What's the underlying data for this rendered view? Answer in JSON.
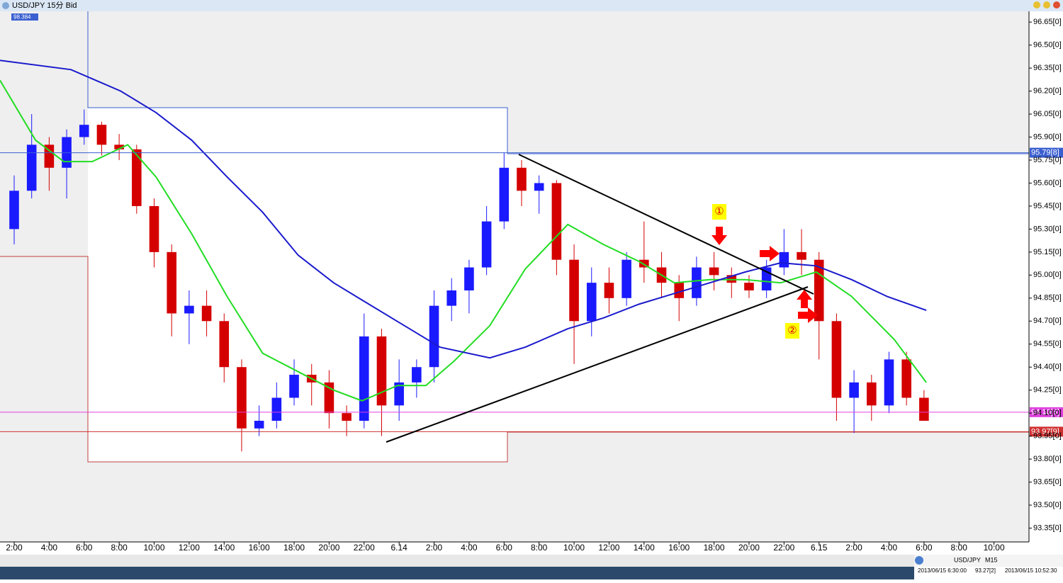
{
  "chart_data": {
    "type": "candlestick",
    "title": "USD/JPY 15分 Bid",
    "badge": "98.384",
    "xlim": [
      -0.81,
      58.0
    ],
    "ylim": [
      93.26,
      96.72
    ],
    "xticks": [
      {
        "value": 0,
        "label": "2:00"
      },
      {
        "value": 2,
        "label": "4:00"
      },
      {
        "value": 4,
        "label": "6:00"
      },
      {
        "value": 6,
        "label": "8:00"
      },
      {
        "value": 8,
        "label": "10:00"
      },
      {
        "value": 10,
        "label": "12:00"
      },
      {
        "value": 12,
        "label": "14:00"
      },
      {
        "value": 14,
        "label": "16:00"
      },
      {
        "value": 16,
        "label": "18:00"
      },
      {
        "value": 18,
        "label": "20:00"
      },
      {
        "value": 20,
        "label": "22:00"
      },
      {
        "value": 22,
        "label": "6.14"
      },
      {
        "value": 24,
        "label": "2:00"
      },
      {
        "value": 26,
        "label": "4:00"
      },
      {
        "value": 28,
        "label": "6:00"
      },
      {
        "value": 30,
        "label": "8:00"
      },
      {
        "value": 32,
        "label": "10:00"
      },
      {
        "value": 34,
        "label": "12:00"
      },
      {
        "value": 36,
        "label": "14:00"
      },
      {
        "value": 38,
        "label": "16:00"
      },
      {
        "value": 40,
        "label": "18:00"
      },
      {
        "value": 42,
        "label": "20:00"
      },
      {
        "value": 44,
        "label": "22:00"
      },
      {
        "value": 46,
        "label": "6.15"
      },
      {
        "value": 48,
        "label": "2:00"
      },
      {
        "value": 50,
        "label": "4:00"
      },
      {
        "value": 52,
        "label": "6:00"
      },
      {
        "value": 54,
        "label": "8:00"
      },
      {
        "value": 56,
        "label": "10:00"
      }
    ],
    "yticks": [
      {
        "value": 96.65,
        "label": "96.65[0]"
      },
      {
        "value": 96.5,
        "label": "96.50[0]"
      },
      {
        "value": 96.35,
        "label": "96.35[0]"
      },
      {
        "value": 96.2,
        "label": "96.20[0]"
      },
      {
        "value": 96.05,
        "label": "96.05[0]"
      },
      {
        "value": 95.9,
        "label": "95.90[0]"
      },
      {
        "value": 95.75,
        "label": "95.75[0]"
      },
      {
        "value": 95.6,
        "label": "95.60[0]"
      },
      {
        "value": 95.45,
        "label": "95.45[0]"
      },
      {
        "value": 95.3,
        "label": "95.30[0]"
      },
      {
        "value": 95.15,
        "label": "95.15[0]"
      },
      {
        "value": 95.0,
        "label": "95.00[0]"
      },
      {
        "value": 94.85,
        "label": "94.85[0]"
      },
      {
        "value": 94.7,
        "label": "94.70[0]"
      },
      {
        "value": 94.55,
        "label": "94.55[0]"
      },
      {
        "value": 94.4,
        "label": "94.40[0]"
      },
      {
        "value": 94.25,
        "label": "94.25[0]"
      },
      {
        "value": 94.1,
        "label": "94.10[0]"
      },
      {
        "value": 93.95,
        "label": "93.95[0]"
      },
      {
        "value": 93.8,
        "label": "93.80[0]"
      },
      {
        "value": 93.65,
        "label": "93.65[0]"
      },
      {
        "value": 93.5,
        "label": "93.50[0]"
      },
      {
        "value": 93.35,
        "label": "93.35[0]"
      }
    ],
    "up_color": "#1a1aff",
    "down_color": "#d40000",
    "candles": {
      "x": [
        0,
        1,
        2,
        3,
        4,
        5,
        6,
        7,
        8,
        9,
        10,
        11,
        12,
        13,
        14,
        15,
        16,
        17,
        18,
        19,
        20,
        21,
        22,
        23,
        24,
        25,
        26,
        27,
        28,
        29,
        30,
        31,
        32,
        33,
        34,
        35,
        36,
        37,
        38,
        39,
        40,
        41,
        42,
        43,
        44,
        45,
        46,
        47,
        48,
        49,
        50,
        51,
        52
      ],
      "open": [
        95.3,
        95.55,
        95.85,
        95.7,
        95.9,
        95.98,
        95.85,
        95.82,
        95.45,
        95.15,
        94.75,
        94.8,
        94.7,
        94.4,
        94.0,
        94.05,
        94.2,
        94.35,
        94.3,
        94.1,
        94.05,
        94.6,
        94.15,
        94.3,
        94.4,
        94.8,
        94.9,
        95.05,
        95.35,
        95.7,
        95.55,
        95.6,
        95.1,
        94.7,
        94.95,
        94.85,
        95.1,
        95.05,
        94.95,
        94.85,
        95.05,
        95.0,
        94.95,
        94.9,
        95.05,
        95.15,
        95.1,
        94.7,
        94.2,
        94.3,
        94.15,
        94.45,
        94.2
      ],
      "high": [
        95.65,
        96.05,
        95.9,
        95.95,
        96.08,
        96.0,
        95.92,
        95.85,
        95.5,
        95.2,
        94.9,
        94.9,
        94.75,
        94.45,
        94.15,
        94.3,
        94.45,
        94.42,
        94.38,
        94.15,
        94.75,
        94.65,
        94.45,
        94.45,
        94.9,
        94.98,
        95.1,
        95.45,
        95.8,
        95.75,
        95.65,
        95.62,
        95.2,
        95.05,
        95.05,
        95.15,
        95.35,
        95.15,
        95.0,
        95.12,
        95.15,
        95.05,
        95.0,
        95.1,
        95.3,
        95.3,
        95.15,
        94.75,
        94.38,
        94.35,
        94.5,
        94.5,
        94.25
      ],
      "low": [
        95.2,
        95.5,
        95.55,
        95.5,
        95.85,
        95.78,
        95.75,
        95.4,
        95.05,
        94.6,
        94.55,
        94.6,
        94.3,
        93.85,
        93.95,
        94.0,
        94.15,
        94.15,
        94.0,
        93.95,
        94.0,
        93.95,
        94.05,
        94.2,
        94.3,
        94.7,
        94.75,
        95.0,
        95.3,
        95.45,
        95.4,
        95.0,
        94.42,
        94.6,
        94.75,
        94.8,
        94.95,
        94.85,
        94.7,
        94.8,
        94.9,
        94.85,
        94.85,
        94.85,
        95.0,
        95.0,
        94.45,
        94.05,
        93.97,
        94.05,
        94.1,
        94.15,
        94.05
      ],
      "close": [
        95.55,
        95.85,
        95.7,
        95.9,
        95.98,
        95.85,
        95.82,
        95.45,
        95.15,
        94.75,
        94.8,
        94.7,
        94.4,
        94.0,
        94.05,
        94.2,
        94.35,
        94.3,
        94.1,
        94.05,
        94.6,
        94.15,
        94.3,
        94.4,
        94.8,
        94.9,
        95.05,
        95.35,
        95.7,
        95.55,
        95.6,
        95.1,
        94.7,
        94.95,
        94.85,
        95.1,
        95.05,
        94.95,
        94.85,
        95.05,
        95.0,
        94.95,
        94.9,
        95.05,
        95.15,
        95.1,
        94.7,
        94.2,
        94.3,
        94.15,
        94.45,
        94.2,
        94.05
      ]
    },
    "series": [
      {
        "color": "#22dd22",
        "x": [
          -0.81,
          1.22,
          2.84,
          4.46,
          6.49,
          8.11,
          10.14,
          12.17,
          14.2,
          16.23,
          18.26,
          19.88,
          21.91,
          23.53,
          25.15,
          27.18,
          29.21,
          31.64,
          33.67,
          35.7,
          37.73,
          39.76,
          41.78,
          43.81,
          45.84,
          47.87,
          50.3,
          52.13
        ],
        "values": [
          96.27,
          95.88,
          95.74,
          95.74,
          95.85,
          95.64,
          95.27,
          94.86,
          94.49,
          94.37,
          94.25,
          94.18,
          94.28,
          94.28,
          94.44,
          94.67,
          95.04,
          95.33,
          95.2,
          95.09,
          94.95,
          94.97,
          94.97,
          94.95,
          95.02,
          94.86,
          94.58,
          94.3
        ]
      },
      {
        "color": "#1a1acc",
        "x": [
          -0.81,
          3.25,
          6.09,
          8.11,
          10.14,
          12.17,
          14.2,
          16.23,
          18.26,
          20.28,
          22.31,
          24.34,
          27.18,
          29.21,
          31.64,
          33.67,
          35.7,
          37.73,
          39.76,
          41.78,
          43.81,
          45.84,
          47.87,
          49.9,
          52.13
        ],
        "values": [
          96.4,
          96.34,
          96.2,
          96.06,
          95.88,
          95.64,
          95.41,
          95.13,
          94.95,
          94.81,
          94.67,
          94.53,
          94.46,
          94.53,
          94.65,
          94.72,
          94.81,
          94.88,
          94.95,
          95.02,
          95.08,
          95.06,
          94.97,
          94.86,
          94.77
        ]
      }
    ],
    "price_marks": [
      {
        "value": 95.798,
        "label": "95.79[8]",
        "color": "#3a5fd0"
      },
      {
        "value": 94.106,
        "label": "94.10[6]",
        "color": "#e040e0"
      },
      {
        "value": 93.979,
        "label": "93.97[9]",
        "color": "#d03030"
      }
    ],
    "annotations": [
      "①",
      "②"
    ],
    "status": {
      "symbol": "USD/JPY",
      "timeframe": "M15",
      "cursor_time": "2013/06/15 6:30:00",
      "cursor_price": "93.27[2]",
      "server_time": "2013/06/15 10:52:30"
    }
  }
}
